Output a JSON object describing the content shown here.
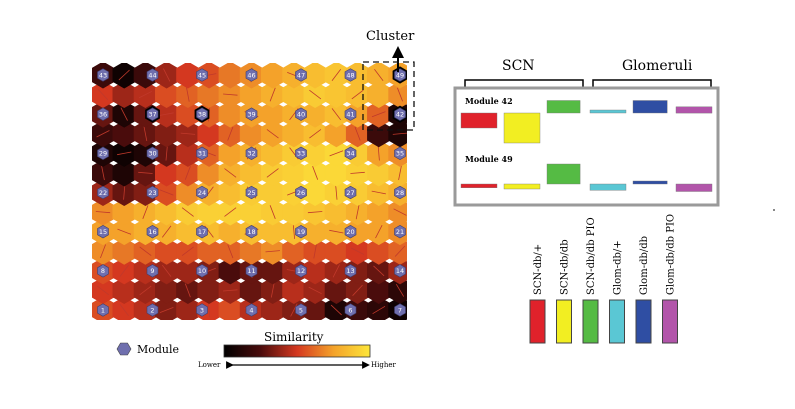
{
  "cluster_label": "Cluster",
  "header": {
    "scn": "SCN",
    "glomeruli": "Glomeruli"
  },
  "legend": {
    "module": "Module",
    "similarity": "Similarity",
    "lower": "Lower",
    "higher": "Higher"
  },
  "modules_chart": {
    "module_a": {
      "label": "Module 42",
      "values": [
        -0.6,
        -1.2,
        0.5,
        0.1,
        0.5,
        0.25
      ]
    },
    "module_b": {
      "label": "Module 49",
      "values": [
        -0.15,
        -0.2,
        0.8,
        -0.25,
        0.0,
        -0.3
      ]
    }
  },
  "conditions": [
    {
      "name": "SCN-db/+",
      "color": "#e0222b"
    },
    {
      "name": "SCN-db/db",
      "color": "#f2ee22"
    },
    {
      "name": "SCN-db/db PIO",
      "color": "#55bb44"
    },
    {
      "name": "Glom-db/+",
      "color": "#5ac7d4"
    },
    {
      "name": "Glom-db/db",
      "color": "#2f4ea3"
    },
    {
      "name": "Glom-db/db PIO",
      "color": "#b255aa"
    }
  ],
  "som_map": {
    "nodes": [
      {
        "id": "1",
        "node_cell": "0,0"
      },
      {
        "id": "2",
        "node_cell": "1,0"
      },
      {
        "id": "3",
        "node_cell": "2,0"
      },
      {
        "id": "4",
        "node_cell": "3,0"
      },
      {
        "id": "5",
        "node_cell": "4,0"
      },
      {
        "id": "6",
        "node_cell": "5,0"
      },
      {
        "id": "7",
        "node_cell": "6,0"
      },
      {
        "id": "8",
        "node_cell": "0,1"
      },
      {
        "id": "9",
        "node_cell": "1,1"
      },
      {
        "id": "10",
        "node_cell": "2,1"
      },
      {
        "id": "11",
        "node_cell": "3,1"
      },
      {
        "id": "12",
        "node_cell": "4,1"
      },
      {
        "id": "13",
        "node_cell": "5,1"
      },
      {
        "id": "14",
        "node_cell": "6,1"
      },
      {
        "id": "15",
        "node_cell": "0,2"
      },
      {
        "id": "16",
        "node_cell": "1,2"
      },
      {
        "id": "17",
        "node_cell": "2,2"
      },
      {
        "id": "18",
        "node_cell": "3,2"
      },
      {
        "id": "19",
        "node_cell": "4,2"
      },
      {
        "id": "20",
        "node_cell": "5,2"
      },
      {
        "id": "21",
        "node_cell": "6,2"
      },
      {
        "id": "22",
        "node_cell": "0,3"
      },
      {
        "id": "23",
        "node_cell": "1,3"
      },
      {
        "id": "24",
        "node_cell": "2,3"
      },
      {
        "id": "25",
        "node_cell": "3,3"
      },
      {
        "id": "26",
        "node_cell": "4,3"
      },
      {
        "id": "27",
        "node_cell": "5,3"
      },
      {
        "id": "28",
        "node_cell": "6,3"
      },
      {
        "id": "29",
        "node_cell": "0,4"
      },
      {
        "id": "30",
        "node_cell": "1,4"
      },
      {
        "id": "31",
        "node_cell": "2,4"
      },
      {
        "id": "32",
        "node_cell": "3,4"
      },
      {
        "id": "33",
        "node_cell": "4,4"
      },
      {
        "id": "34",
        "node_cell": "5,4"
      },
      {
        "id": "35",
        "node_cell": "6,4"
      },
      {
        "id": "36",
        "node_cell": "0,5"
      },
      {
        "id": "37",
        "node_cell": "1,5",
        "highlight": true
      },
      {
        "id": "38",
        "node_cell": "2,5",
        "highlight": true
      },
      {
        "id": "39",
        "node_cell": "3,5"
      },
      {
        "id": "40",
        "node_cell": "4,5"
      },
      {
        "id": "41",
        "node_cell": "5,5"
      },
      {
        "id": "42",
        "node_cell": "6,5",
        "highlight": true
      },
      {
        "id": "43",
        "node_cell": "0,6"
      },
      {
        "id": "44",
        "node_cell": "1,6"
      },
      {
        "id": "45",
        "node_cell": "2,6"
      },
      {
        "id": "46",
        "node_cell": "3,6"
      },
      {
        "id": "47",
        "node_cell": "4,6"
      },
      {
        "id": "48",
        "node_cell": "5,6"
      },
      {
        "id": "49",
        "node_cell": "6,6",
        "highlight": true
      }
    ],
    "intermediate_similarity": [
      [
        0.55,
        0.5,
        0.45,
        0.35,
        0.4,
        0.5,
        0.55,
        0.45,
        0.4,
        0.35,
        0.3,
        0.1,
        0.2,
        0.15,
        0.05
      ],
      [
        0.5,
        0.45,
        0.4,
        0.35,
        0.3,
        0.35,
        0.4,
        0.3,
        0.35,
        0.45,
        0.4,
        0.3,
        0.35,
        0.25,
        0.15
      ],
      [
        0.55,
        0.5,
        0.45,
        0.4,
        0.4,
        0.35,
        0.25,
        0.3,
        0.3,
        0.4,
        0.45,
        0.4,
        0.35,
        0.3,
        0.4
      ],
      [
        0.7,
        0.65,
        0.6,
        0.55,
        0.55,
        0.6,
        0.6,
        0.65,
        0.7,
        0.6,
        0.55,
        0.55,
        0.5,
        0.55,
        0.6
      ],
      [
        0.75,
        0.75,
        0.8,
        0.8,
        0.85,
        0.85,
        0.8,
        0.85,
        0.85,
        0.85,
        0.8,
        0.8,
        0.75,
        0.75,
        0.7
      ],
      [
        0.7,
        0.75,
        0.8,
        0.85,
        0.9,
        0.92,
        0.92,
        0.92,
        0.9,
        0.9,
        0.88,
        0.85,
        0.8,
        0.75,
        0.7
      ],
      [
        0.4,
        0.3,
        0.35,
        0.55,
        0.7,
        0.8,
        0.85,
        0.9,
        0.9,
        0.92,
        0.95,
        0.92,
        0.9,
        0.85,
        0.8
      ],
      [
        0.2,
        0.1,
        0.3,
        0.5,
        0.55,
        0.7,
        0.8,
        0.85,
        0.9,
        0.92,
        0.95,
        0.95,
        0.92,
        0.9,
        0.85
      ],
      [
        0.1,
        0.05,
        0.1,
        0.3,
        0.45,
        0.6,
        0.75,
        0.8,
        0.85,
        0.9,
        0.92,
        0.95,
        0.9,
        0.75,
        0.7
      ],
      [
        0.2,
        0.25,
        0.3,
        0.35,
        0.4,
        0.5,
        0.6,
        0.7,
        0.75,
        0.8,
        0.85,
        0.75,
        0.6,
        0.2,
        0.1
      ],
      [
        0.3,
        0.1,
        0.3,
        0.45,
        0.55,
        0.6,
        0.7,
        0.75,
        0.75,
        0.8,
        0.8,
        0.85,
        0.75,
        0.6,
        0.1
      ],
      [
        0.5,
        0.4,
        0.45,
        0.55,
        0.6,
        0.65,
        0.7,
        0.75,
        0.8,
        0.85,
        0.9,
        0.88,
        0.85,
        0.8,
        0.7
      ],
      [
        0.2,
        0.05,
        0.2,
        0.4,
        0.5,
        0.55,
        0.65,
        0.7,
        0.75,
        0.8,
        0.85,
        0.88,
        0.85,
        0.8,
        0.75
      ]
    ]
  }
}
